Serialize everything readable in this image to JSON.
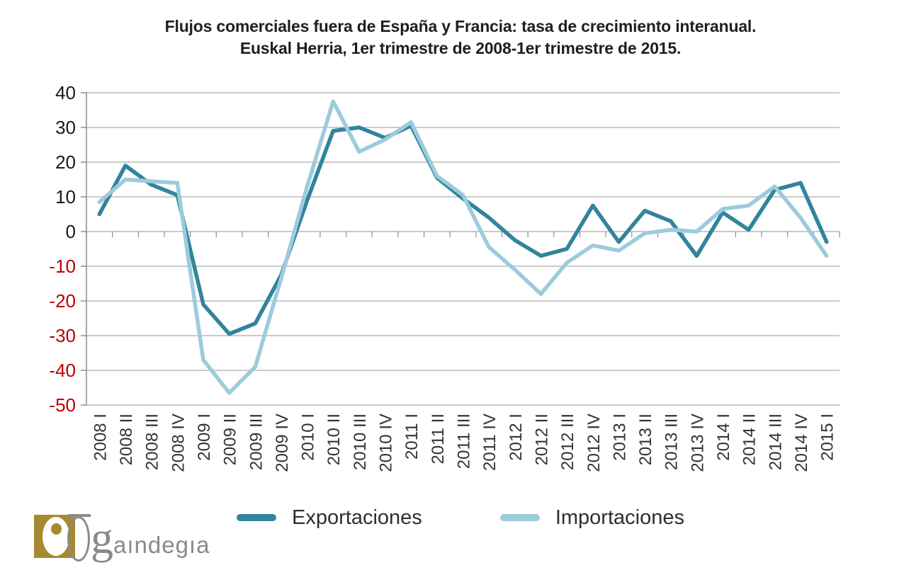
{
  "title": {
    "line1": "Flujos comerciales fuera de España y Francia: tasa de crecimiento interanual.",
    "line2": "Euskal Herria, 1er trimestre de 2008-1er trimestre de 2015."
  },
  "logo": {
    "g": "g",
    "rest": "aındegıa",
    "gold_color": "#a78a2f",
    "gray_color": "#8a8a8a"
  },
  "chart_data": {
    "type": "line",
    "title": "Flujos comerciales fuera de España y Francia: tasa de crecimiento interanual. Euskal Herria, 1er trimestre de 2008-1er trimestre de 2015.",
    "xlabel": "",
    "ylabel": "",
    "ylim": [
      -50,
      40
    ],
    "yticks": [
      40,
      30,
      20,
      10,
      0,
      -10,
      -20,
      -30,
      -40,
      -50
    ],
    "grid": true,
    "legend_position": "bottom",
    "categories": [
      "2008 I",
      "2008 II",
      "2008 III",
      "2008 IV",
      "2009 I",
      "2009 II",
      "2009 III",
      "2009 IV",
      "2010 I",
      "2010 II",
      "2010 III",
      "2010 IV",
      "2011 I",
      "2011 II",
      "2011 III",
      "2011 IV",
      "2012 I",
      "2012 II",
      "2012 III",
      "2012 IV",
      "2013 I",
      "2013 II",
      "2013 III",
      "2013 IV",
      "2014 I",
      "2014 II",
      "2014 III",
      "2014 IV",
      "2015 I"
    ],
    "series": [
      {
        "name": "Exportaciones",
        "color": "#31849B",
        "values": [
          5,
          19,
          13.5,
          10.5,
          -21,
          -29.5,
          -26.5,
          -12.5,
          9,
          29,
          30,
          27,
          30.5,
          15.5,
          9.5,
          4,
          -2.5,
          -7,
          -5,
          7.5,
          -3,
          6,
          3,
          -7,
          5.5,
          0.5,
          12,
          14,
          -3
        ]
      },
      {
        "name": "Importaciones",
        "color": "#9CCBDC",
        "values": [
          8.5,
          15,
          14.5,
          14,
          -37,
          -46.5,
          -39,
          -13.5,
          13,
          37.5,
          23,
          26.5,
          31.5,
          16,
          10.5,
          -4.5,
          -11,
          -18,
          -9,
          -4,
          -5.5,
          -0.5,
          0.5,
          0,
          6.5,
          7.5,
          13,
          4,
          -7
        ]
      }
    ],
    "colors": {
      "grid": "#ababab",
      "axis": "#8c8c8c",
      "positive_tick": "#1a1a1a",
      "negative_tick": "#c00000",
      "category_label": "#333333"
    }
  }
}
